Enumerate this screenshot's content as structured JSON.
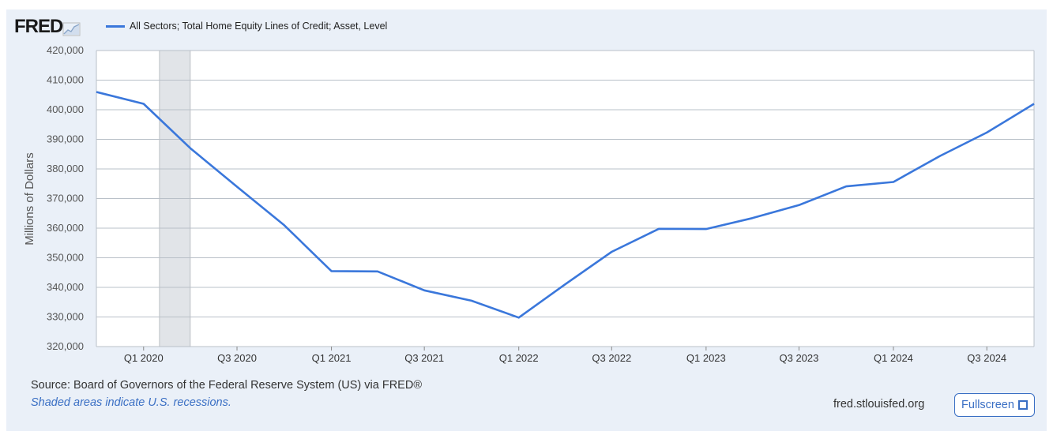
{
  "header": {
    "logo_text": "FRED",
    "logo_icon": "chart-line-icon",
    "legend_label": "All Sectors; Total Home Equity Lines of Credit; Asset, Level",
    "legend_color": "#3a77db"
  },
  "footer": {
    "source": "Source: Board of Governors of the Federal Reserve System (US) via FRED®",
    "recession_note": "Shaded areas indicate U.S. recessions.",
    "site": "fred.stlouisfed.org",
    "fullscreen_label": "Fullscreen",
    "fullscreen_icon": "expand-icon"
  },
  "colors": {
    "panel_bg": "#eaf0f8",
    "line": "#3a77db",
    "recession": "#e1e4e8",
    "link": "#3a6fc4"
  },
  "chart_data": {
    "type": "line",
    "ylabel": "Millions of Dollars",
    "ylim": [
      320000,
      420000
    ],
    "yticks": [
      420000,
      410000,
      400000,
      390000,
      380000,
      370000,
      360000,
      350000,
      340000,
      330000,
      320000
    ],
    "ytick_labels": [
      "420,000",
      "410,000",
      "400,000",
      "390,000",
      "380,000",
      "370,000",
      "360,000",
      "350,000",
      "340,000",
      "330,000",
      "320,000"
    ],
    "xlim": [
      "2019-10-01",
      "2024-10-01"
    ],
    "xticks": [
      "Q1 2020",
      "Q3 2020",
      "Q1 2021",
      "Q3 2021",
      "Q1 2022",
      "Q3 2022",
      "Q1 2023",
      "Q3 2023",
      "Q1 2024",
      "Q3 2024"
    ],
    "recession": [
      "2020-02",
      "2020-04"
    ],
    "grid": true,
    "series": [
      {
        "name": "All Sectors; Total Home Equity Lines of Credit; Asset, Level",
        "x": [
          "Q4 2019",
          "Q1 2020",
          "Q2 2020",
          "Q3 2020",
          "Q4 2020",
          "Q1 2021",
          "Q2 2021",
          "Q3 2021",
          "Q4 2021",
          "Q1 2022",
          "Q2 2022",
          "Q3 2022",
          "Q4 2022",
          "Q1 2023",
          "Q2 2023",
          "Q3 2023",
          "Q4 2023",
          "Q1 2024",
          "Q2 2024",
          "Q3 2024",
          "Q4 2024"
        ],
        "values": [
          406000,
          402000,
          387000,
          374000,
          361000,
          345500,
          345400,
          339000,
          335500,
          329800,
          341000,
          352000,
          359800,
          359700,
          363400,
          367800,
          374100,
          375600,
          384400,
          392300,
          402000
        ]
      }
    ]
  }
}
